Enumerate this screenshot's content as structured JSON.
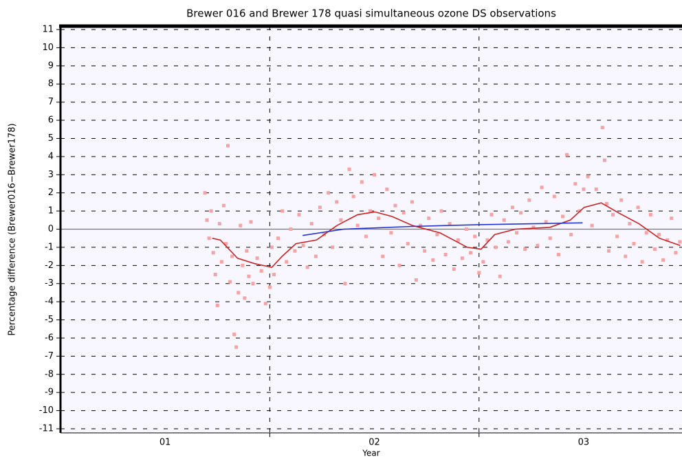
{
  "chart_data": {
    "type": "scatter",
    "title": "Brewer 016 and Brewer 178 quasi simultaneous ozone DS observations",
    "xlabel": "Year",
    "ylabel": "Percentage difference (Brewer016−Brewer178)",
    "xlim": [
      2001.0,
      2003.97
    ],
    "ylim": [
      -11,
      11
    ],
    "xticks": [
      {
        "value": 2001.5,
        "label": "01"
      },
      {
        "value": 2002.5,
        "label": "02"
      },
      {
        "value": 2003.5,
        "label": "03"
      }
    ],
    "x_minor_ticks": [
      2002,
      2003
    ],
    "yticks": [
      -11,
      -10,
      -9,
      -8,
      -7,
      -6,
      -5,
      -4,
      -3,
      -2,
      -1,
      0,
      1,
      2,
      3,
      4,
      5,
      6,
      7,
      8,
      9,
      10,
      11
    ],
    "grid": true,
    "series": [
      {
        "type": "scatter",
        "color": "#f5a3a3",
        "x": [
          2001.69,
          2001.7,
          2001.71,
          2001.72,
          2001.73,
          2001.74,
          2001.75,
          2001.76,
          2001.77,
          2001.78,
          2001.79,
          2001.8,
          2001.81,
          2001.82,
          2001.83,
          2001.84,
          2001.85,
          2001.86,
          2001.87,
          2001.88,
          2001.89,
          2001.9,
          2001.91,
          2001.92,
          2001.94,
          2001.96,
          2001.98,
          2002.0,
          2002.01,
          2002.02,
          2002.04,
          2002.06,
          2002.08,
          2002.1,
          2002.12,
          2002.14,
          2002.16,
          2002.18,
          2002.2,
          2002.22,
          2002.24,
          2002.26,
          2002.28,
          2002.3,
          2002.32,
          2002.34,
          2002.36,
          2002.38,
          2002.4,
          2002.42,
          2002.44,
          2002.46,
          2002.48,
          2002.5,
          2002.52,
          2002.54,
          2002.56,
          2002.58,
          2002.6,
          2002.62,
          2002.64,
          2002.66,
          2002.68,
          2002.7,
          2002.72,
          2002.74,
          2002.76,
          2002.78,
          2002.8,
          2002.82,
          2002.84,
          2002.86,
          2002.88,
          2002.9,
          2002.92,
          2002.94,
          2002.96,
          2002.98,
          2003.0,
          2003.02,
          2003.04,
          2003.06,
          2003.08,
          2003.1,
          2003.12,
          2003.14,
          2003.16,
          2003.18,
          2003.2,
          2003.22,
          2003.24,
          2003.26,
          2003.28,
          2003.3,
          2003.32,
          2003.34,
          2003.36,
          2003.38,
          2003.4,
          2003.42,
          2003.44,
          2003.46,
          2003.48,
          2003.5,
          2003.52,
          2003.54,
          2003.56,
          2003.59,
          2003.6,
          2003.61,
          2003.62,
          2003.64,
          2003.66,
          2003.68,
          2003.7,
          2003.72,
          2003.74,
          2003.76,
          2003.78,
          2003.8,
          2003.82,
          2003.84,
          2003.86,
          2003.88,
          2003.9,
          2003.92,
          2003.94,
          2003.96
        ],
        "values": [
          2.0,
          0.5,
          -0.5,
          1.0,
          -1.3,
          -2.5,
          -4.2,
          0.3,
          -1.8,
          1.3,
          -0.8,
          4.6,
          -2.9,
          -1.5,
          -5.8,
          -6.5,
          -3.5,
          0.2,
          -2.0,
          -3.8,
          -1.2,
          -2.6,
          0.4,
          -3.0,
          -1.6,
          -2.3,
          -4.1,
          -3.2,
          -1.0,
          -2.5,
          -0.5,
          1.0,
          -1.8,
          0.0,
          -1.2,
          0.8,
          -0.9,
          -2.1,
          0.3,
          -1.5,
          1.2,
          -0.3,
          2.0,
          -1.0,
          1.5,
          0.5,
          -3.0,
          3.3,
          1.8,
          0.2,
          2.6,
          -0.4,
          1.0,
          3.0,
          0.6,
          -1.5,
          2.2,
          -0.2,
          1.3,
          -2.0,
          0.9,
          -0.8,
          1.5,
          -2.8,
          0.2,
          -1.2,
          0.6,
          -1.7,
          -0.3,
          1.0,
          -1.4,
          0.3,
          -2.2,
          -0.6,
          -1.6,
          0.0,
          -1.3,
          -0.4,
          -2.4,
          -1.8,
          -0.6,
          0.8,
          -1.0,
          -2.6,
          0.5,
          -0.7,
          1.2,
          -0.2,
          0.9,
          -1.1,
          1.6,
          0.1,
          -0.9,
          2.3,
          0.4,
          -0.5,
          1.8,
          -1.4,
          0.7,
          4.1,
          -0.3,
          2.5,
          1.0,
          2.2,
          2.9,
          0.2,
          2.2,
          5.6,
          3.8,
          1.4,
          -1.2,
          0.8,
          -0.4,
          1.6,
          -1.5,
          0.3,
          -0.8,
          1.2,
          -1.8,
          -0.2,
          0.8,
          -1.1,
          -0.3,
          -1.7,
          -0.6,
          0.6,
          -1.3,
          -0.7
        ]
      },
      {
        "type": "line",
        "color": "#cc2222",
        "x": [
          2001.725,
          2001.764,
          2001.846,
          2001.928,
          2002.01,
          2002.059,
          2002.125,
          2002.223,
          2002.321,
          2002.42,
          2002.502,
          2002.584,
          2002.682,
          2002.813,
          2002.944,
          2003.01,
          2003.075,
          2003.174,
          2003.338,
          2003.436,
          2003.502,
          2003.584,
          2003.666,
          2003.764,
          2003.862,
          2003.961
        ],
        "values": [
          -0.5,
          -0.6,
          -1.6,
          -1.9,
          -2.1,
          -1.5,
          -0.8,
          -0.6,
          0.2,
          0.8,
          0.95,
          0.7,
          0.2,
          -0.2,
          -1.0,
          -1.1,
          -0.3,
          0.0,
          0.1,
          0.5,
          1.2,
          1.45,
          0.9,
          0.3,
          -0.5,
          -0.9
        ]
      },
      {
        "type": "line",
        "color": "#2233cc",
        "x": [
          2002.157,
          2002.354,
          2002.682,
          2003.01,
          2003.495
        ],
        "values": [
          -0.35,
          0.0,
          0.15,
          0.25,
          0.35
        ]
      }
    ]
  }
}
